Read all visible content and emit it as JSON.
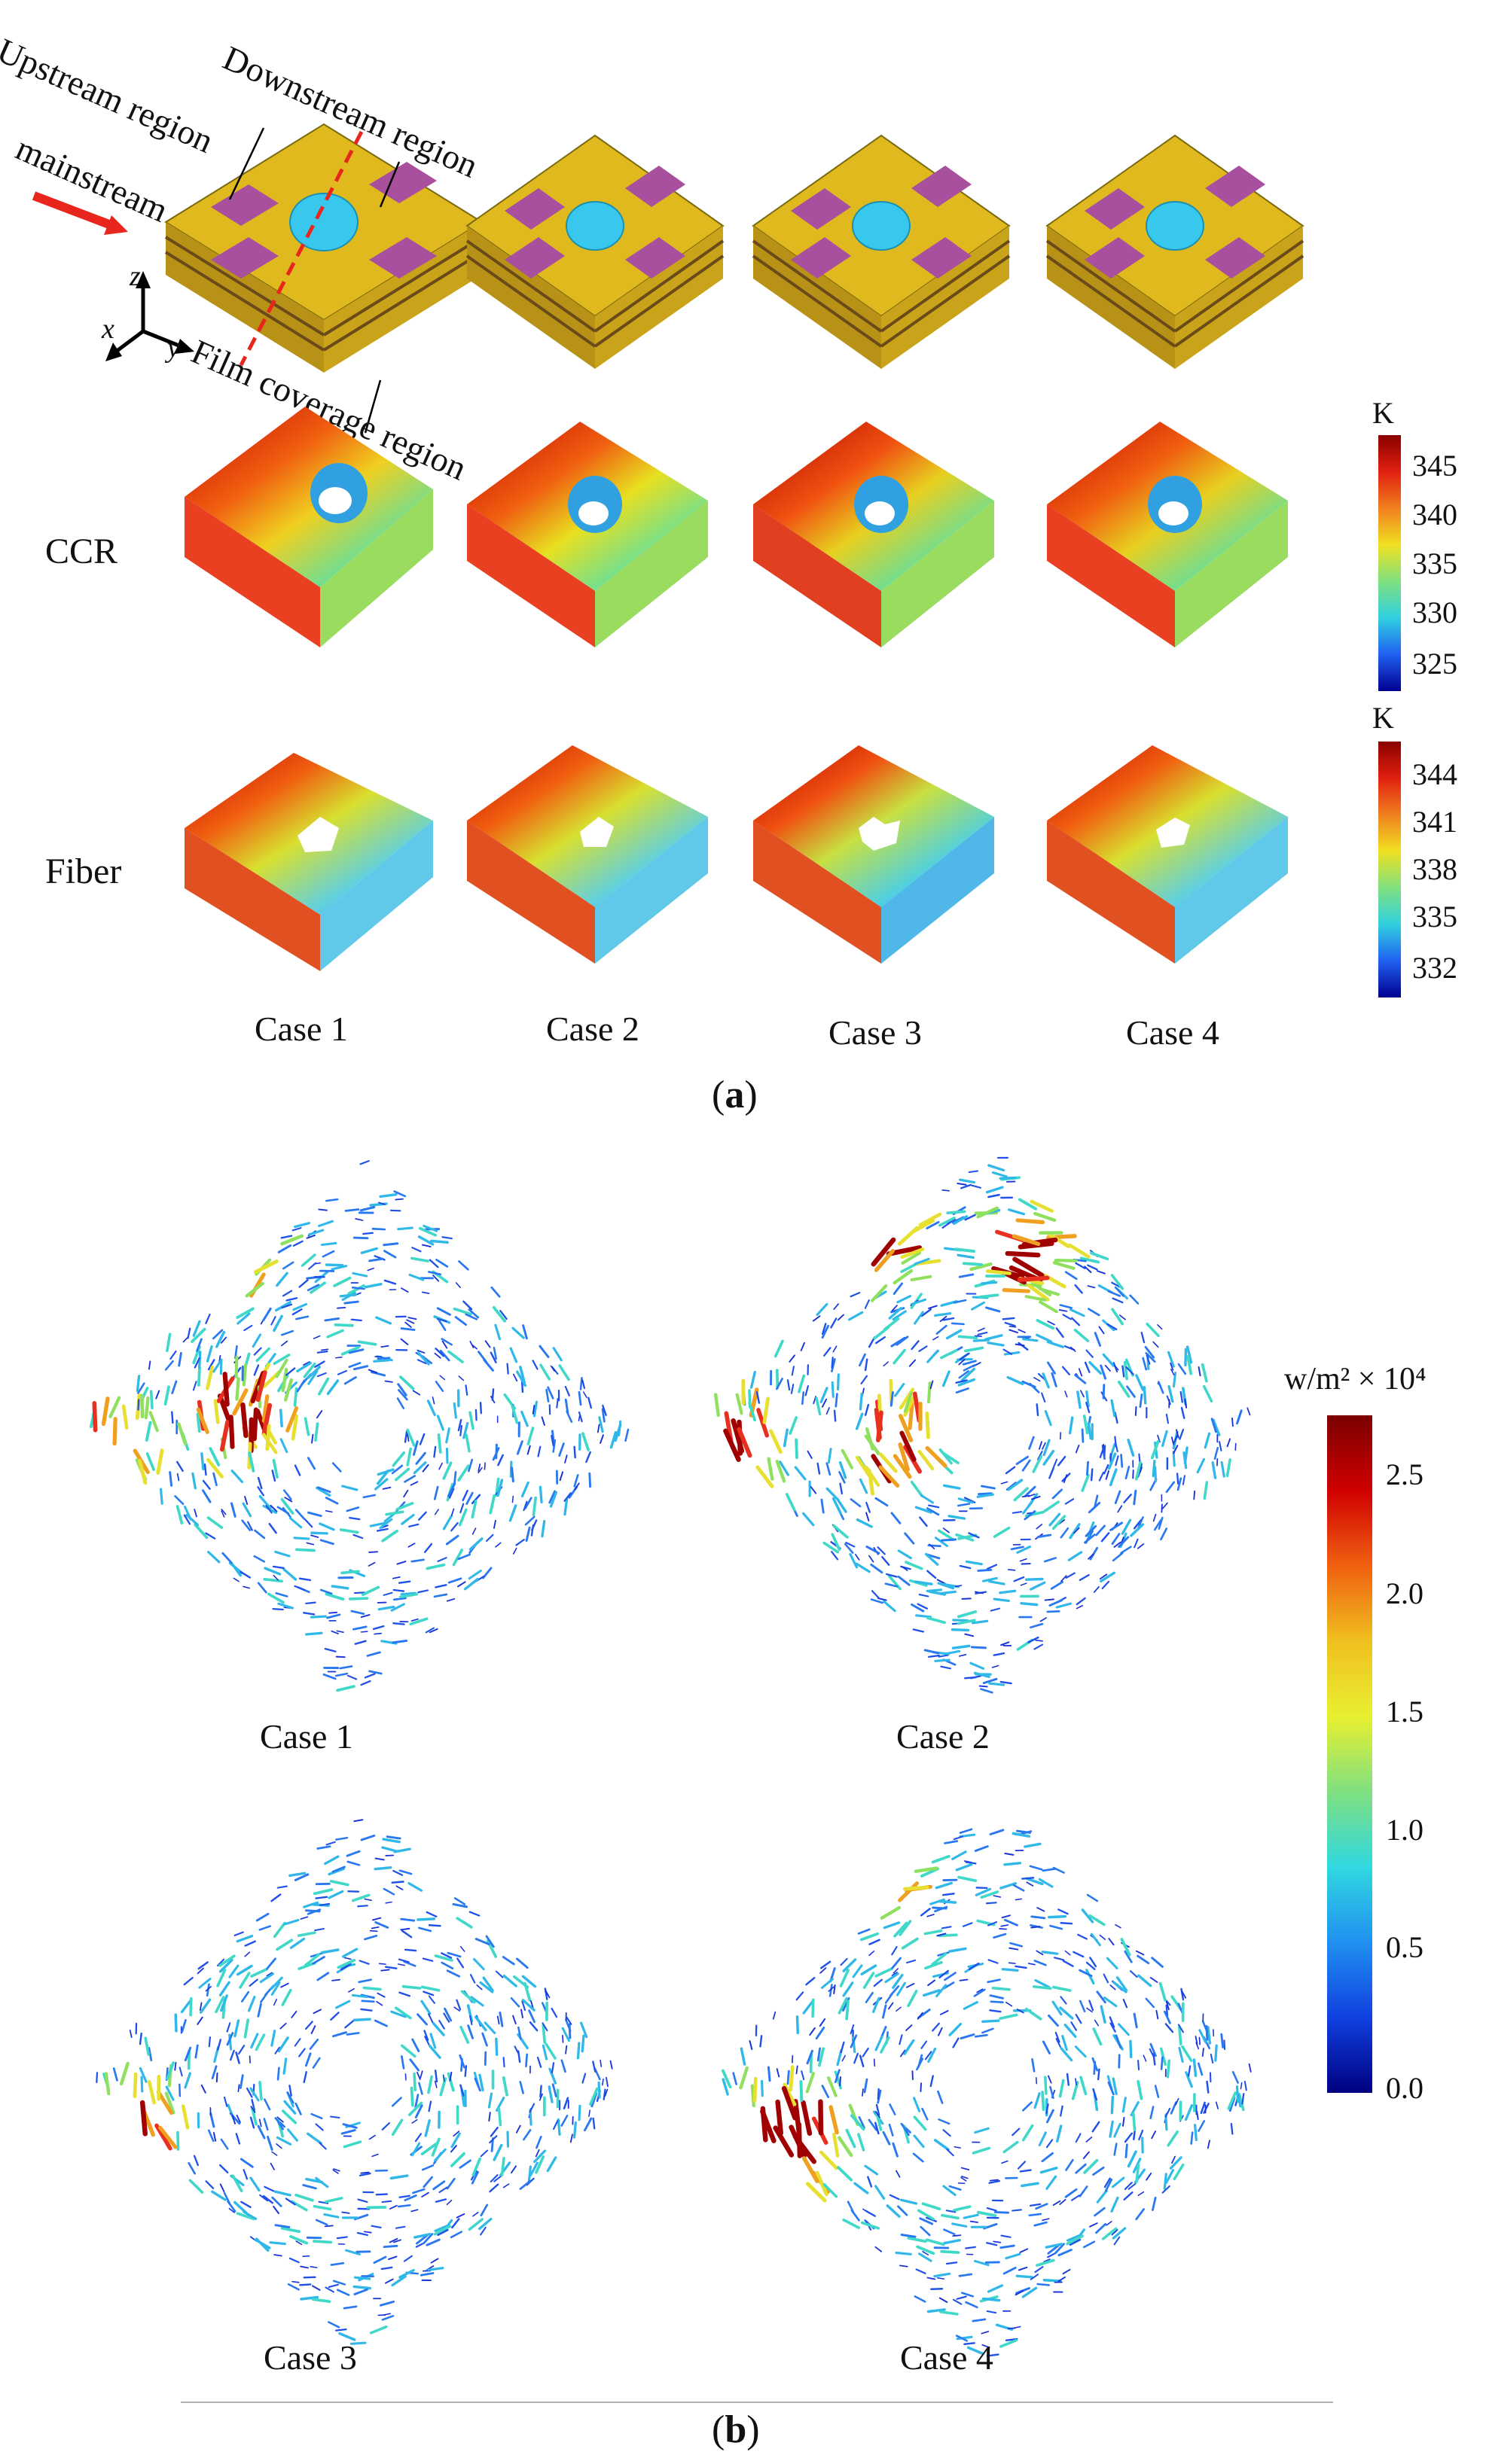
{
  "panel_a": {
    "label_prefix": "(",
    "label_letter": "a",
    "label_suffix": ")",
    "annotations": {
      "upstream": "Upstream region",
      "downstream": "Downstream region",
      "mainstream": "mainstream",
      "film_coverage": "Film coverage region",
      "axis_x": "x",
      "axis_y": "y",
      "axis_z": "z"
    },
    "rows": {
      "ccr": "CCR",
      "fiber": "Fiber"
    },
    "cases": [
      "Case 1",
      "Case 2",
      "Case 3",
      "Case 4"
    ],
    "colorbar_ccr": {
      "unit": "K",
      "ticks": [
        "345",
        "340",
        "335",
        "330",
        "325"
      ]
    },
    "colorbar_fiber": {
      "unit": "K",
      "ticks": [
        "344",
        "341",
        "338",
        "335",
        "332"
      ]
    }
  },
  "panel_b": {
    "label_prefix": "(",
    "label_letter": "b",
    "label_suffix": ")",
    "cases": [
      "Case 1",
      "Case 2",
      "Case 3",
      "Case 4"
    ],
    "colorbar": {
      "unit": "w/m² × 10⁴",
      "ticks": [
        "2.5",
        "2.0",
        "1.5",
        "1.0",
        "0.5",
        "0.0"
      ]
    }
  },
  "colors": {
    "yarn_yellow": "#e0b91e",
    "yarn_purple": "#a8509e",
    "hole_cyan": "#38c8ee",
    "arrow_red": "#e8261e",
    "jet_dark_red": "#7a0000",
    "jet_red": "#e8261e",
    "jet_yellow": "#f5e02a",
    "jet_cyan": "#36d6e0",
    "jet_blue": "#1832d8",
    "jet_dark_blue": "#000080"
  }
}
